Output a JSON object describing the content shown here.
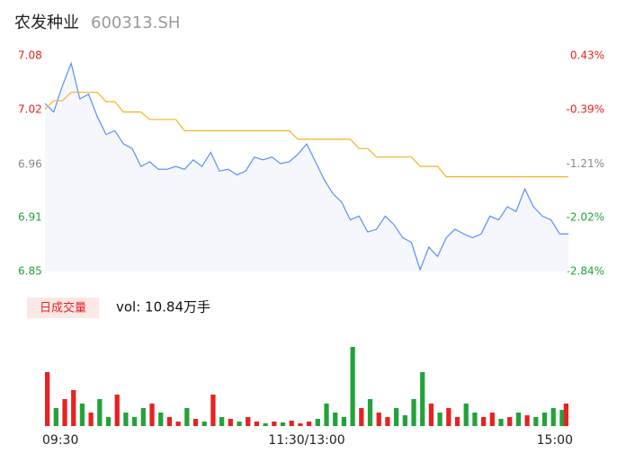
{
  "chart_data": {
    "type": "line",
    "title": "农发种业",
    "subtitle": "600313.SH",
    "x": [
      0,
      4,
      8,
      12,
      16,
      20,
      24,
      28,
      32,
      36,
      40,
      44,
      48,
      52,
      56,
      60,
      64,
      68,
      72,
      76,
      80,
      84,
      88,
      92,
      96,
      100,
      104,
      108,
      112,
      116,
      120,
      124,
      128,
      132,
      136,
      140,
      144,
      148,
      152,
      156,
      160,
      164,
      168,
      172,
      176,
      180,
      184,
      188,
      192,
      196,
      200,
      204,
      208,
      212,
      216,
      220,
      224,
      228,
      232,
      236,
      240
    ],
    "xlim": [
      0,
      240
    ],
    "xticks": [
      {
        "value": 0,
        "label": "09:30"
      },
      {
        "value": 120,
        "label": "11:30/13:00"
      },
      {
        "value": 240,
        "label": "15:00"
      }
    ],
    "ylim": [
      6.85,
      7.08
    ],
    "yticks": [
      {
        "value": 6.85,
        "label": "6.85"
      },
      {
        "value": 6.9075,
        "label": "6.91"
      },
      {
        "value": 6.964,
        "label": "6.96"
      },
      {
        "value": 7.0225,
        "label": "7.02"
      },
      {
        "value": 7.08,
        "label": "7.08"
      }
    ],
    "ytick_colors": [
      "#22a33a",
      "#22a33a",
      "#888888",
      "#e62222",
      "#e62222"
    ],
    "y2lim": [
      -2.84,
      0.43
    ],
    "y2ticks": [
      {
        "value": -2.84,
        "label": "-2.84%"
      },
      {
        "value": -2.02,
        "label": "-2.02%"
      },
      {
        "value": -1.21,
        "label": "-1.21%"
      },
      {
        "value": -0.39,
        "label": "-0.39%"
      },
      {
        "value": 0.43,
        "label": "0.43%"
      }
    ],
    "y2tick_colors": [
      "#22a33a",
      "#22a33a",
      "#888888",
      "#e62222",
      "#e62222"
    ],
    "fill": "#f5f7fc",
    "series": [
      {
        "color": "#5b8ff9",
        "values": [
          7.029,
          7.02,
          7.048,
          7.072,
          7.034,
          7.039,
          7.015,
          6.996,
          7.0,
          6.986,
          6.981,
          6.962,
          6.967,
          6.959,
          6.959,
          6.962,
          6.959,
          6.969,
          6.962,
          6.977,
          6.957,
          6.959,
          6.953,
          6.957,
          6.972,
          6.969,
          6.972,
          6.965,
          6.967,
          6.975,
          6.986,
          6.967,
          6.948,
          6.933,
          6.924,
          6.905,
          6.909,
          6.892,
          6.895,
          6.909,
          6.9,
          6.886,
          6.881,
          6.852,
          6.876,
          6.866,
          6.886,
          6.895,
          6.89,
          6.886,
          6.89,
          6.909,
          6.905,
          6.919,
          6.914,
          6.938,
          6.919,
          6.909,
          6.905,
          6.89,
          6.89
        ]
      },
      {
        "color": "#f5b324",
        "values": [
          7.023,
          7.032,
          7.032,
          7.041,
          7.041,
          7.041,
          7.041,
          7.031,
          7.031,
          7.02,
          7.02,
          7.02,
          7.012,
          7.012,
          7.012,
          7.012,
          7.0,
          7.0,
          7.0,
          7.0,
          7.0,
          7.0,
          7.0,
          7.0,
          7.0,
          7.0,
          7.0,
          7.0,
          7.0,
          6.991,
          6.991,
          6.991,
          6.991,
          6.991,
          6.991,
          6.991,
          6.981,
          6.981,
          6.972,
          6.972,
          6.972,
          6.972,
          6.972,
          6.962,
          6.962,
          6.962,
          6.951,
          6.951,
          6.951,
          6.951,
          6.951,
          6.951,
          6.951,
          6.951,
          6.951,
          6.951,
          6.951,
          6.951,
          6.951,
          6.951,
          6.951
        ]
      }
    ],
    "volume": {
      "label": "日成交量",
      "text": "vol: 10.84万手",
      "ylim": [
        0,
        100
      ],
      "up_color": "#e62222",
      "down_color": "#22a33a",
      "values": [
        60,
        20,
        30,
        40,
        25,
        15,
        30,
        10,
        35,
        15,
        10,
        20,
        25,
        15,
        10,
        5,
        20,
        8,
        5,
        35,
        10,
        8,
        5,
        10,
        5,
        3,
        5,
        4,
        6,
        3,
        5,
        8,
        25,
        15,
        10,
        88,
        20,
        30,
        15,
        10,
        20,
        12,
        30,
        60,
        25,
        15,
        20,
        10,
        25,
        15,
        10,
        15,
        8,
        10,
        15,
        12,
        10,
        15,
        20,
        18,
        25
      ]
    }
  }
}
